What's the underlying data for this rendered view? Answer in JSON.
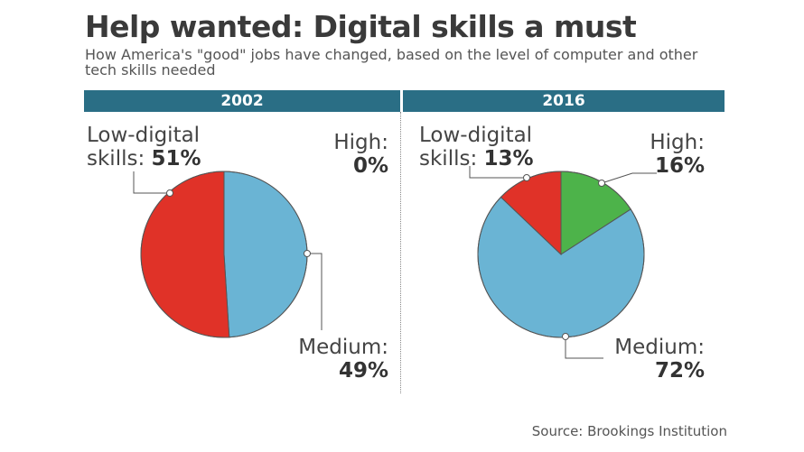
{
  "title": "Help wanted: Digital skills a must",
  "subtitle": "How America's \"good\" jobs have changed, based on the level of computer and other tech skills needed",
  "source": "Source: Brookings Institution",
  "colors": {
    "band": "#2a6e85",
    "low": "#e03228",
    "medium": "#6ab4d4",
    "high": "#4db34a"
  },
  "chart_data": [
    {
      "type": "pie",
      "title": "2002",
      "slices": [
        {
          "label": "Low-digital skills",
          "value": 51,
          "label_line1": "Low-digital",
          "label_line2": "skills:",
          "pct": "51%"
        },
        {
          "label": "Medium",
          "value": 49,
          "label_line1": "Medium:",
          "pct": "49%"
        },
        {
          "label": "High",
          "value": 0,
          "label_line1": "High:",
          "pct": "0%"
        }
      ]
    },
    {
      "type": "pie",
      "title": "2016",
      "slices": [
        {
          "label": "Low-digital skills",
          "value": 13,
          "label_line1": "Low-digital",
          "label_line2": "skills:",
          "pct": "13%"
        },
        {
          "label": "Medium",
          "value": 72,
          "label_line1": "Medium:",
          "pct": "72%"
        },
        {
          "label": "High",
          "value": 16,
          "label_line1": "High:",
          "pct": "16%"
        }
      ]
    }
  ]
}
